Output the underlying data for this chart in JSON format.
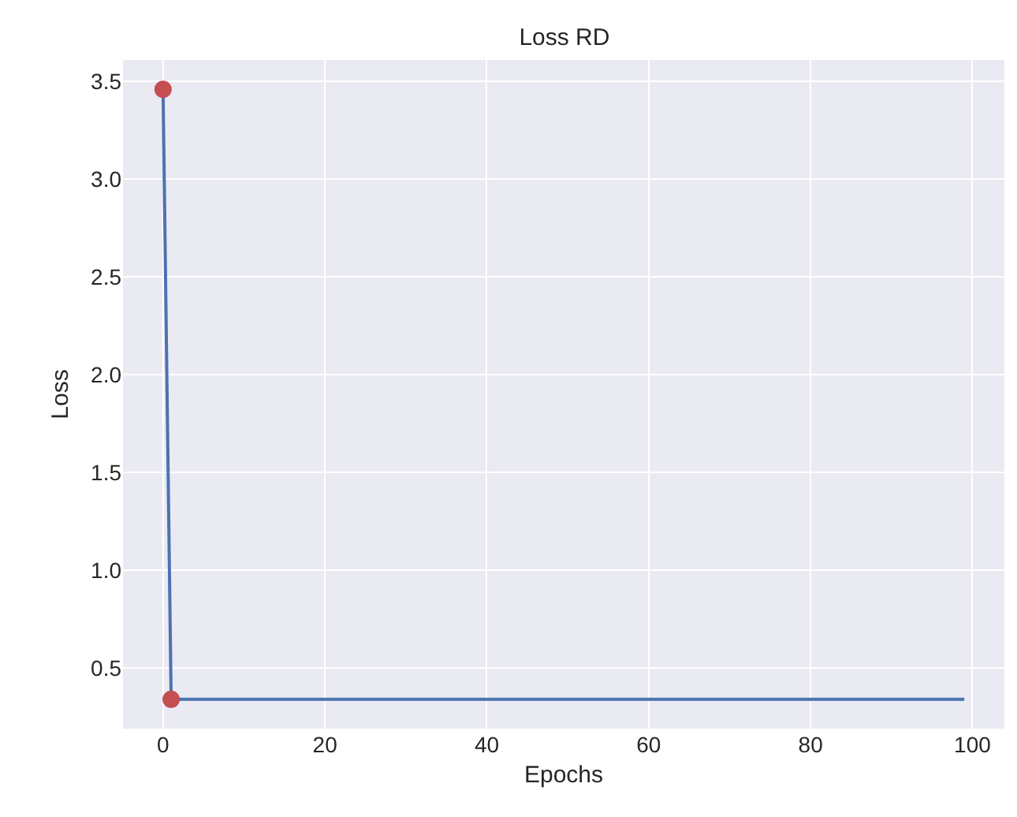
{
  "chart_data": {
    "type": "line",
    "title": "Loss RD",
    "xlabel": "Epochs",
    "ylabel": "Loss",
    "xlim": [
      -4.95,
      103.95
    ],
    "xticks": [
      0,
      20,
      40,
      60,
      80,
      100
    ],
    "ylim": [
      0.19,
      3.61
    ],
    "yticks": [
      {
        "value": 0.5,
        "label": "0.5"
      },
      {
        "value": 1,
        "label": "1.0"
      },
      {
        "value": 1.5,
        "label": "1.5"
      },
      {
        "value": 2,
        "label": "2.0"
      },
      {
        "value": 2.5,
        "label": "2.5"
      },
      {
        "value": 3,
        "label": "3.0"
      },
      {
        "value": 3.5,
        "label": "3.5"
      }
    ],
    "grid": true,
    "series": [
      {
        "color": "#4c72b0",
        "marker": "none",
        "line_style": "solid",
        "x": [
          0,
          1,
          99
        ],
        "values": [
          3.46,
          0.34,
          0.34
        ]
      },
      {
        "type": "scatter",
        "color": "#c44e52",
        "marker": "circle",
        "x": [
          0,
          1
        ],
        "values": [
          3.46,
          0.34
        ]
      }
    ]
  }
}
